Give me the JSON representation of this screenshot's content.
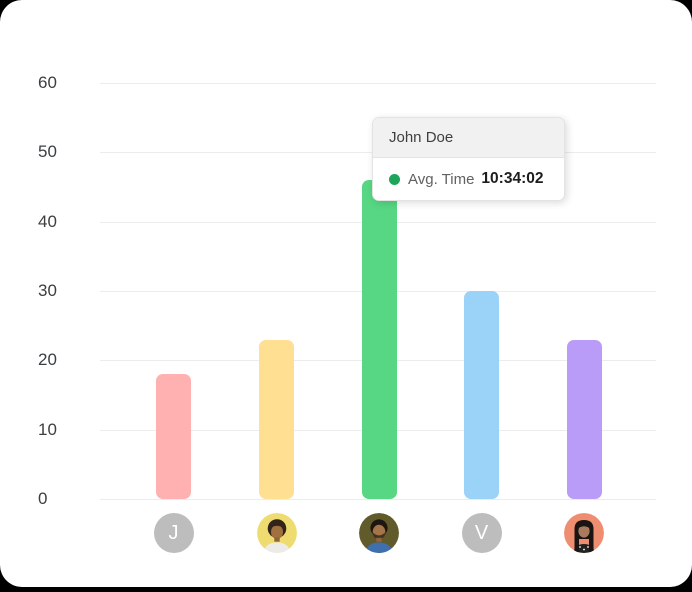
{
  "window": {
    "background": "#000000",
    "card_background": "#ffffff"
  },
  "chart_data": {
    "type": "bar",
    "title": "",
    "xlabel": "",
    "ylabel": "",
    "ylim": [
      0,
      60
    ],
    "yticks": [
      0,
      10,
      20,
      30,
      40,
      50,
      60
    ],
    "grid": "horizontal",
    "legend": "none",
    "series": [
      {
        "name": "Avg. Time",
        "values": [
          18,
          23,
          46,
          30,
          23
        ]
      }
    ],
    "bar_colors": [
      "#ffb1b1",
      "#ffdf91",
      "#57d783",
      "#9bd2f8",
      "#b99cf8"
    ],
    "categories": [
      {
        "kind": "initial",
        "label": "J",
        "bg": "#bdbdbd",
        "avatar": "initial-j-avatar"
      },
      {
        "kind": "photo",
        "label": "",
        "bg": "#eedc71",
        "avatar": "woman-yellow-avatar"
      },
      {
        "kind": "photo",
        "label": "",
        "bg": "#615a2b",
        "avatar": "man-olive-avatar"
      },
      {
        "kind": "initial",
        "label": "V",
        "bg": "#bdbdbd",
        "avatar": "initial-v-avatar"
      },
      {
        "kind": "photo",
        "label": "",
        "bg": "#ef8d70",
        "avatar": "woman-coral-avatar"
      }
    ]
  },
  "tooltip": {
    "title": "John Doe",
    "series_label": "Avg. Time",
    "value": "10:34:02",
    "marker_color": "#1fa45b"
  },
  "colors": {
    "gridline": "#ececec",
    "axis_label": "#3a3f42",
    "tooltip_header_bg": "#f1f1f1",
    "tooltip_border": "#e3e3e3"
  }
}
